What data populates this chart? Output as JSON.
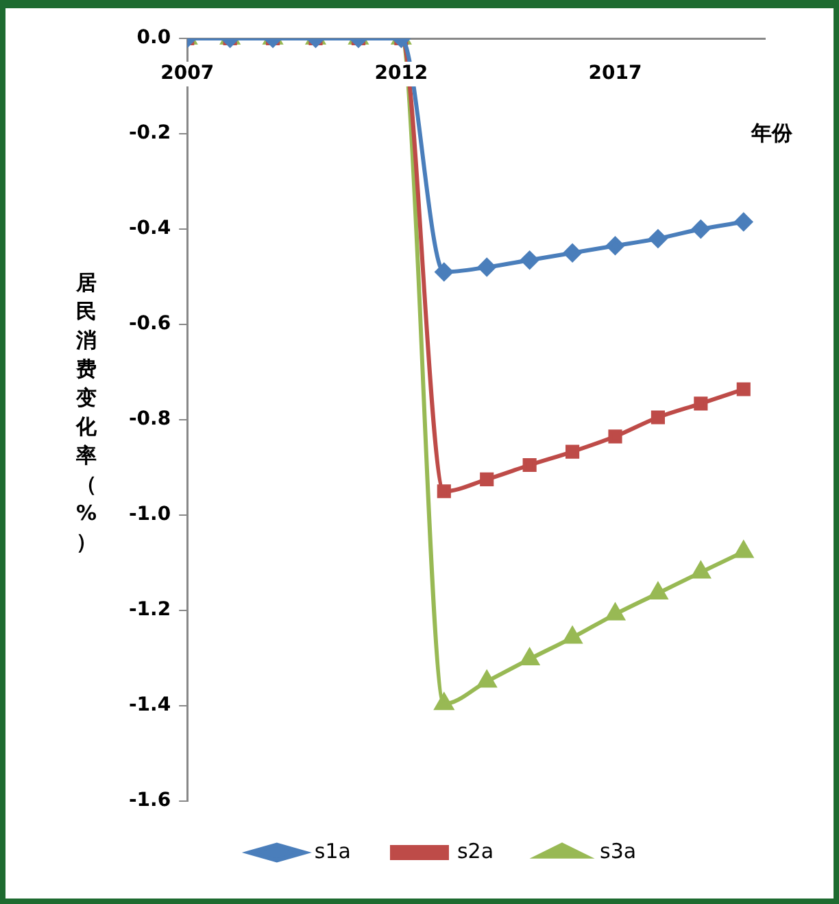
{
  "chart_data": {
    "type": "line",
    "xlabel": "年份",
    "ylabel": "居民消费变化率（%）",
    "x": [
      2007,
      2008,
      2009,
      2010,
      2011,
      2012,
      2013,
      2014,
      2015,
      2016,
      2017,
      2018,
      2019,
      2020
    ],
    "xlim": [
      2007,
      2020.5
    ],
    "xticks": [
      2007,
      2012,
      2017
    ],
    "ylim": [
      -1.6,
      0
    ],
    "yticks": [
      {
        "value": -1.6,
        "label": "-1.6"
      },
      {
        "value": -1.4,
        "label": "-1.4"
      },
      {
        "value": -1.2,
        "label": "-1.2"
      },
      {
        "value": -1,
        "label": "-1.0"
      },
      {
        "value": -0.8,
        "label": "-0.8"
      },
      {
        "value": -0.6,
        "label": "-0.6"
      },
      {
        "value": -0.4,
        "label": "-0.4"
      },
      {
        "value": -0.2,
        "label": "-0.2"
      },
      {
        "value": 0,
        "label": "0.0"
      }
    ],
    "grid": false,
    "legend": "bottom",
    "series": [
      {
        "name": "s1a",
        "color": "#4a7ebb",
        "marker": "diamond",
        "values": [
          0,
          0,
          0,
          0,
          0,
          0,
          -0.49,
          -0.48,
          -0.465,
          -0.45,
          -0.435,
          -0.42,
          -0.4,
          -0.385
        ]
      },
      {
        "name": "s2a",
        "color": "#be4b48",
        "marker": "square",
        "values": [
          0,
          0,
          0,
          0,
          0,
          0,
          -0.95,
          -0.925,
          -0.895,
          -0.867,
          -0.835,
          -0.795,
          -0.766,
          -0.736
        ]
      },
      {
        "name": "s3a",
        "color": "#98b954",
        "marker": "triangle",
        "values": [
          0,
          0,
          0,
          0,
          0,
          0,
          -1.396,
          -1.349,
          -1.302,
          -1.257,
          -1.208,
          -1.164,
          -1.12,
          -1.077
        ]
      }
    ]
  }
}
